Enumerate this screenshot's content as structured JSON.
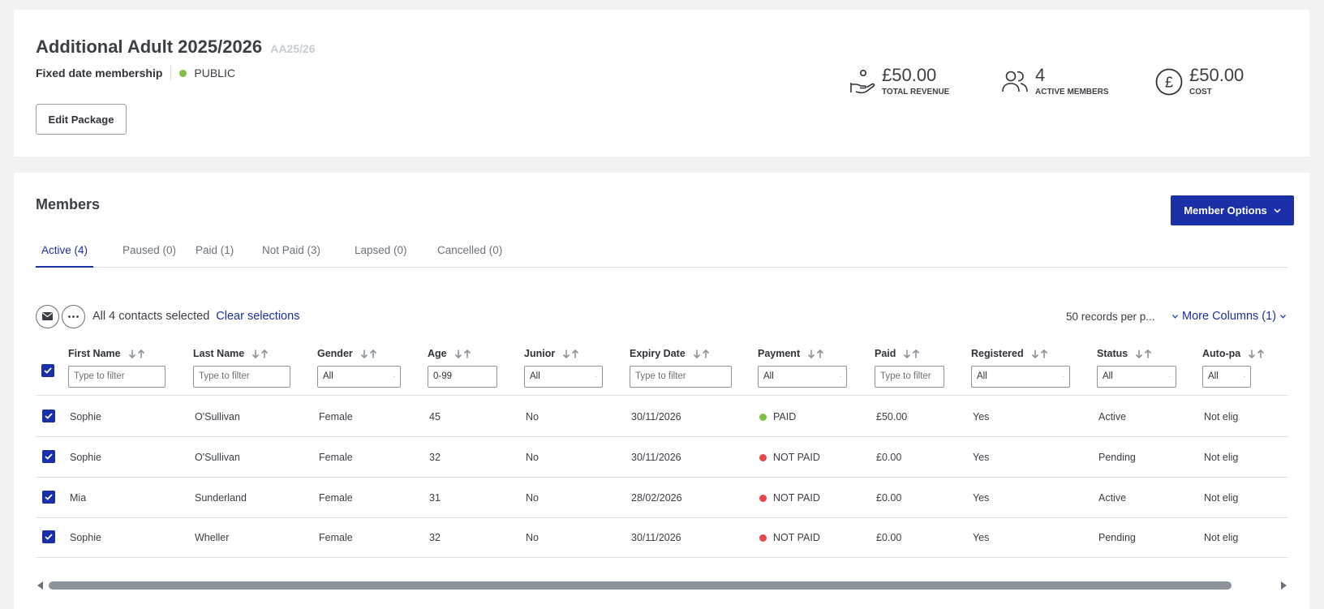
{
  "package": {
    "title": "Additional Adult 2025/2026",
    "code": "AA25/26",
    "type": "Fixed date membership",
    "visibility": "PUBLIC",
    "edit_label": "Edit Package"
  },
  "stats": [
    {
      "value": "£50.00",
      "label": "TOTAL REVENUE",
      "icon": "hand-coin-icon"
    },
    {
      "value": "4",
      "label": "ACTIVE MEMBERS",
      "icon": "users-icon"
    },
    {
      "value": "£50.00",
      "label": "COST",
      "icon": "pound-icon"
    }
  ],
  "members": {
    "title": "Members",
    "options_label": "Member Options",
    "tabs": [
      {
        "label": "Active (4)",
        "active": true
      },
      {
        "label": "Paused (0)"
      },
      {
        "label": "Paid (1)"
      },
      {
        "label": "Not Paid (3)"
      },
      {
        "label": "Lapsed (0)"
      },
      {
        "label": "Cancelled (0)"
      }
    ],
    "selection_text": "All 4 contacts selected",
    "clear_label": "Clear selections",
    "per_page": "50 records per p...",
    "more_columns": "More Columns (1)"
  },
  "columns": [
    {
      "title": "First Name",
      "filter": "Type to filter",
      "kind": "text"
    },
    {
      "title": "Last Name",
      "filter": "Type to filter",
      "kind": "text"
    },
    {
      "title": "Gender",
      "filter": "All",
      "kind": "select"
    },
    {
      "title": "Age",
      "filter": "0-99",
      "kind": "value"
    },
    {
      "title": "Junior",
      "filter": "All",
      "kind": "select"
    },
    {
      "title": "Expiry Date",
      "filter": "Type to filter",
      "kind": "text"
    },
    {
      "title": "Payment",
      "filter": "All",
      "kind": "select"
    },
    {
      "title": "Paid",
      "filter": "Type to filter",
      "kind": "text"
    },
    {
      "title": "Registered",
      "filter": "All",
      "kind": "select"
    },
    {
      "title": "Status",
      "filter": "All",
      "kind": "select"
    },
    {
      "title": "Auto-pa",
      "filter": "All",
      "kind": "select"
    }
  ],
  "rows": [
    {
      "first": "Sophie",
      "last": "O'Sullivan",
      "gender": "Female",
      "age": "45",
      "junior": "No",
      "expiry": "30/11/2026",
      "payment": "PAID",
      "paid": "£50.00",
      "registered": "Yes",
      "status": "Active",
      "autopay": "Not elig"
    },
    {
      "first": "Sophie",
      "last": "O'Sullivan",
      "gender": "Female",
      "age": "32",
      "junior": "No",
      "expiry": "30/11/2026",
      "payment": "NOT PAID",
      "paid": "£0.00",
      "registered": "Yes",
      "status": "Pending",
      "autopay": "Not elig"
    },
    {
      "first": "Mia",
      "last": "Sunderland",
      "gender": "Female",
      "age": "31",
      "junior": "No",
      "expiry": "28/02/2026",
      "payment": "NOT PAID",
      "paid": "£0.00",
      "registered": "Yes",
      "status": "Active",
      "autopay": "Not elig"
    },
    {
      "first": "Sophie",
      "last": "Wheller",
      "gender": "Female",
      "age": "32",
      "junior": "No",
      "expiry": "30/11/2026",
      "payment": "NOT PAID",
      "paid": "£0.00",
      "registered": "Yes",
      "status": "Pending",
      "autopay": "Not elig"
    }
  ],
  "colors": {
    "accent": "#1a2fa8",
    "paid": "#7cc142",
    "not_paid": "#e5474b"
  }
}
